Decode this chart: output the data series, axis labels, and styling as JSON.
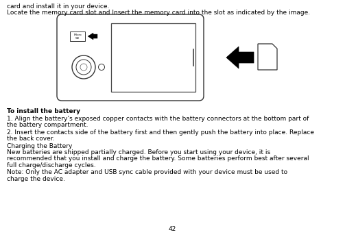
{
  "line1": "card and install it in your device.",
  "line2": "Locate the memory card slot and Insert the memory card into the slot as indicated by the image.",
  "bold_heading": "To install the battery",
  "para1_l1": "1. Align the battery’s exposed copper contacts with the battery connectors at the bottom part of",
  "para1_l2": "the battery compartment.",
  "para2_l1": "2. Insert the contacts side of the battery first and then gently push the battery into place. Replace",
  "para2_l2": "the back cover.",
  "para3": "Charging the Battery",
  "para4_l1": "New batteries are shipped partially charged. Before you start using your device, it is",
  "para4_l2": "recommended that you install and charge the battery. Some batteries perform best after several",
  "para4_l3": "full charge/discharge cycles.",
  "para5_l1": "Note: Only the AC adapter and USB sync cable provided with your device must be used to",
  "para5_l2": "charge the device.",
  "page_number": "42",
  "bg_color": "#ffffff",
  "text_color": "#000000",
  "fig_width": 5.03,
  "fig_height": 3.49,
  "dpi": 100
}
